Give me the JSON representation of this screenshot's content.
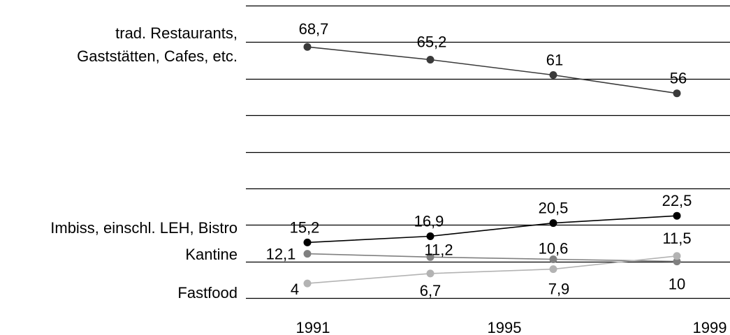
{
  "chart_data": {
    "type": "line",
    "x_tick_labels": [
      "1991",
      "1995",
      "1999"
    ],
    "ylim": [
      0,
      80
    ],
    "grid": true,
    "series": [
      {
        "name": "trad. Restaurants, Gaststätten, Cafes, etc.",
        "name_lines": [
          "trad. Restaurants,",
          "Gaststätten, Cafes, etc."
        ],
        "color": "#3a3a3a",
        "values": [
          68.7,
          65.2,
          61,
          56
        ],
        "labels": [
          "68,7",
          "65,2",
          "61",
          "56"
        ]
      },
      {
        "name": "Imbiss, einschl. LEH, Bistro",
        "name_lines": [
          "Imbiss, einschl. LEH, Bistro"
        ],
        "color": "#000000",
        "values": [
          15.2,
          16.9,
          20.5,
          22.5
        ],
        "labels": [
          "15,2",
          "16,9",
          "20,5",
          "22,5"
        ]
      },
      {
        "name": "Kantine",
        "name_lines": [
          "Kantine"
        ],
        "color": "#808080",
        "values": [
          12.1,
          11.2,
          10.6,
          10
        ],
        "labels": [
          "12,1",
          "11,2",
          "10,6",
          "10"
        ]
      },
      {
        "name": "Fastfood",
        "name_lines": [
          "Fastfood"
        ],
        "color": "#b3b3b3",
        "values": [
          4,
          6.7,
          7.9,
          11.5
        ],
        "labels": [
          "4",
          "6,7",
          "7,9",
          "11,5"
        ]
      }
    ]
  }
}
